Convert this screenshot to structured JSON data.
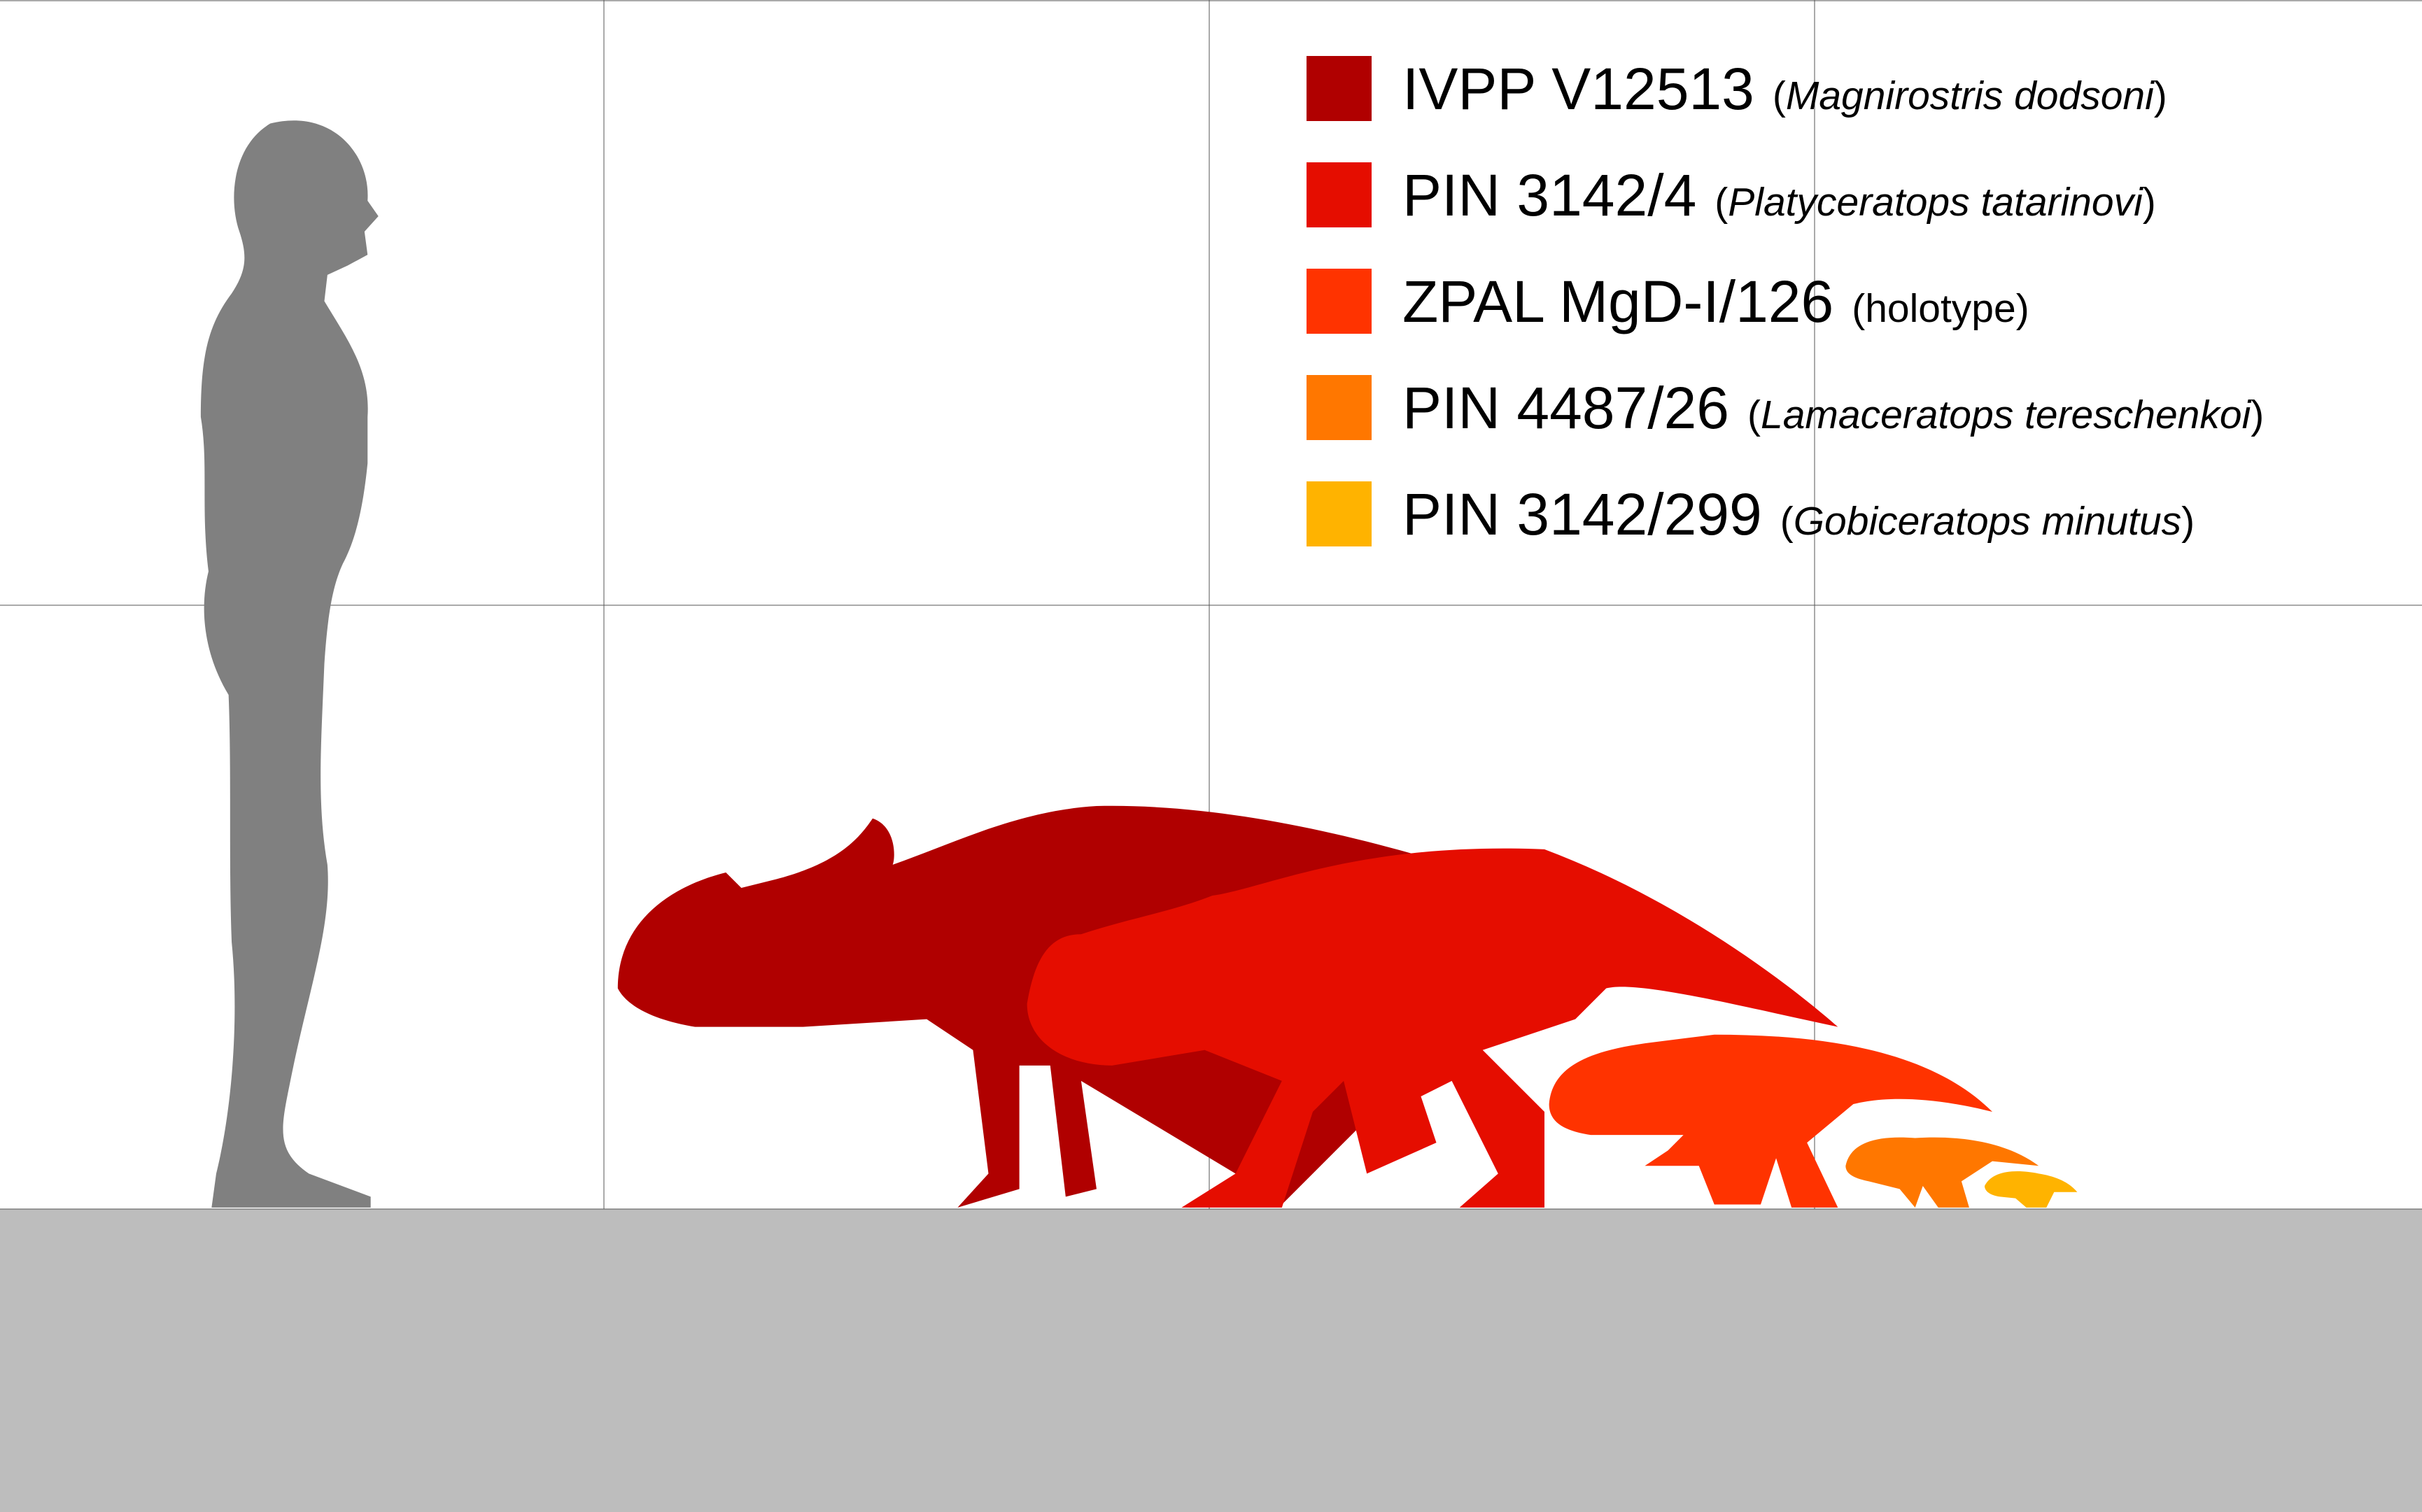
{
  "legend": {
    "items": [
      {
        "specimen": "IVPP V12513",
        "color": "#b00000",
        "note": {
          "open": "(",
          "text": "Magnirostris dodsoni",
          "close": ")",
          "italic": true
        }
      },
      {
        "specimen": "PIN 3142/4",
        "color": "#e50d00",
        "note": {
          "open": "(",
          "text": "Platyceratops tatarinovi",
          "close": ")",
          "italic": true
        }
      },
      {
        "specimen": "ZPAL MgD-I/126",
        "color": "#ff3300",
        "note": {
          "open": "(",
          "text": "holotype",
          "close": ")",
          "italic": false
        }
      },
      {
        "specimen": "PIN 4487/26",
        "color": "#ff7700",
        "note": {
          "open": "(",
          "text": "Lamaceratops tereschenkoi",
          "close": ")",
          "italic": true
        }
      },
      {
        "specimen": "PIN 3142/299",
        "color": "#ffb300",
        "note": {
          "open": "(",
          "text": "Gobiceratops minutus",
          "close": ")",
          "italic": true
        }
      }
    ]
  }
}
